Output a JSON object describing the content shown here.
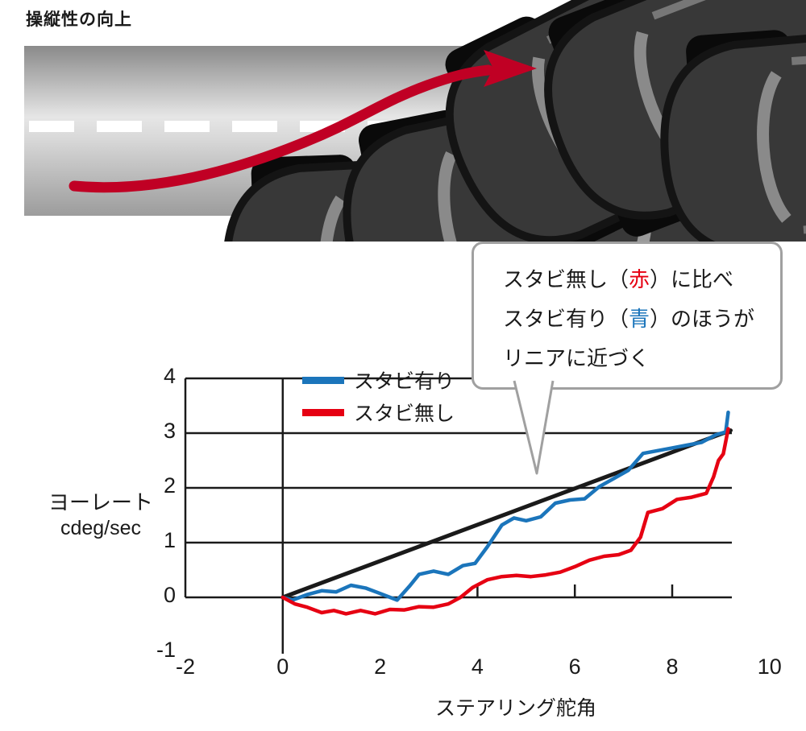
{
  "page": {
    "title": "操縦性の向上",
    "background": "#ffffff"
  },
  "illustration": {
    "name": "lane-change-maneuver",
    "road_color_top": "#8a8a8a",
    "road_color_mid": "#e6e6e6",
    "road_color_bottom": "#9c9c9c",
    "lane_marking_color": "#ffffff",
    "car_body_color": "#383838",
    "trajectory_color": "#c00024",
    "car_count": 5
  },
  "callout": {
    "line1": {
      "pre": "スタビ無し（",
      "em": "赤",
      "post": "）に比べ",
      "em_color": "#e60012"
    },
    "line2": {
      "pre": "スタビ有り（",
      "em": "青",
      "post": "）のほうが",
      "em_color": "#1b75bb"
    },
    "line3": {
      "text": "リニアに近づく"
    }
  },
  "chart_data": {
    "type": "line",
    "title": "",
    "xlabel": "ステアリング舵角",
    "ylabel": [
      "ヨーレート",
      "cdeg/sec"
    ],
    "xlim": [
      -2,
      10
    ],
    "ylim": [
      -1,
      4
    ],
    "xticks": [
      -2,
      0,
      2,
      4,
      6,
      8,
      10
    ],
    "yticks": [
      4,
      3,
      2,
      1,
      0,
      -1
    ],
    "x_minor_ticks": [
      4,
      6,
      8
    ],
    "grid": "horizontal",
    "legend_position": "top-left-inside",
    "legend": [
      {
        "label": "スタビ有り",
        "color": "#1b75bb"
      },
      {
        "label": "スタビ無し",
        "color": "#e60012"
      }
    ],
    "series": [
      {
        "name": "linear-reference",
        "color": "#1a1a1a",
        "width": 5,
        "points": [
          [
            0,
            0
          ],
          [
            9.2,
            3.05
          ]
        ]
      },
      {
        "name": "スタビ有り",
        "color": "#1b75bb",
        "width": 4.5,
        "points": [
          [
            0,
            0
          ],
          [
            0.2,
            -0.05
          ],
          [
            0.5,
            0.05
          ],
          [
            0.8,
            0.12
          ],
          [
            1.1,
            0.1
          ],
          [
            1.4,
            0.22
          ],
          [
            1.7,
            0.17
          ],
          [
            2.0,
            0.07
          ],
          [
            2.35,
            -0.05
          ],
          [
            2.6,
            0.2
          ],
          [
            2.8,
            0.42
          ],
          [
            3.1,
            0.48
          ],
          [
            3.4,
            0.42
          ],
          [
            3.7,
            0.58
          ],
          [
            3.95,
            0.62
          ],
          [
            4.2,
            0.92
          ],
          [
            4.5,
            1.32
          ],
          [
            4.75,
            1.45
          ],
          [
            5.0,
            1.4
          ],
          [
            5.3,
            1.47
          ],
          [
            5.6,
            1.72
          ],
          [
            5.9,
            1.78
          ],
          [
            6.2,
            1.8
          ],
          [
            6.5,
            2.02
          ],
          [
            6.8,
            2.17
          ],
          [
            7.1,
            2.32
          ],
          [
            7.4,
            2.63
          ],
          [
            7.7,
            2.68
          ],
          [
            8.0,
            2.73
          ],
          [
            8.3,
            2.78
          ],
          [
            8.6,
            2.83
          ],
          [
            8.9,
            2.97
          ],
          [
            9.1,
            3.02
          ],
          [
            9.15,
            3.38
          ]
        ]
      },
      {
        "name": "スタビ無し",
        "color": "#e60012",
        "width": 4.5,
        "points": [
          [
            0,
            0
          ],
          [
            0.25,
            -0.12
          ],
          [
            0.5,
            -0.18
          ],
          [
            0.8,
            -0.28
          ],
          [
            1.05,
            -0.24
          ],
          [
            1.3,
            -0.3
          ],
          [
            1.6,
            -0.24
          ],
          [
            1.9,
            -0.3
          ],
          [
            2.2,
            -0.22
          ],
          [
            2.5,
            -0.23
          ],
          [
            2.8,
            -0.17
          ],
          [
            3.1,
            -0.18
          ],
          [
            3.4,
            -0.12
          ],
          [
            3.65,
            0.0
          ],
          [
            3.9,
            0.18
          ],
          [
            4.2,
            0.32
          ],
          [
            4.5,
            0.38
          ],
          [
            4.8,
            0.4
          ],
          [
            5.1,
            0.38
          ],
          [
            5.4,
            0.41
          ],
          [
            5.7,
            0.46
          ],
          [
            6.0,
            0.56
          ],
          [
            6.3,
            0.68
          ],
          [
            6.6,
            0.75
          ],
          [
            6.9,
            0.78
          ],
          [
            7.15,
            0.86
          ],
          [
            7.35,
            1.1
          ],
          [
            7.5,
            1.55
          ],
          [
            7.8,
            1.62
          ],
          [
            8.1,
            1.79
          ],
          [
            8.4,
            1.83
          ],
          [
            8.7,
            1.9
          ],
          [
            8.85,
            2.2
          ],
          [
            8.95,
            2.5
          ],
          [
            9.05,
            2.62
          ],
          [
            9.15,
            3.08
          ]
        ]
      }
    ]
  }
}
